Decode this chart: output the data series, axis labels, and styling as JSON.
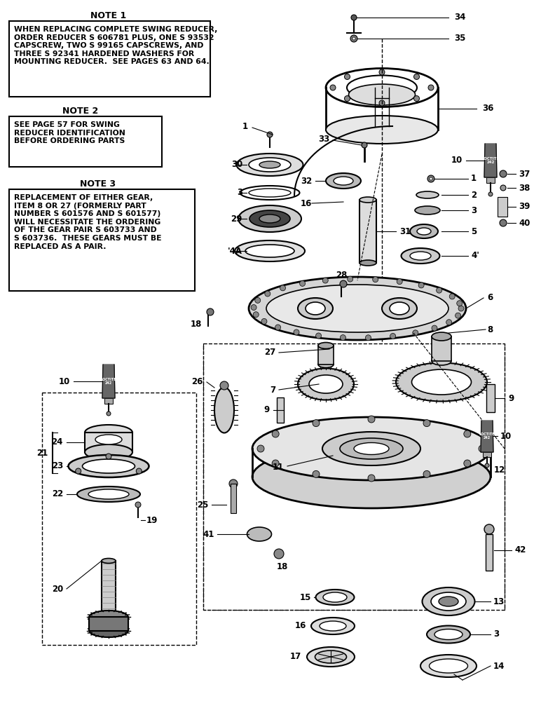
{
  "bg": "#ffffff",
  "note1_title": "NOTE 1",
  "note1_body": "WHEN REPLACING COMPLETE SWING REDUCER,\nORDER REDUCER S 606781 PLUS, ONE S 93532\nCAPSCREW, TWO S 99165 CAPSCREWS, AND\nTHREE S 92341 HARDENED WASHERS FOR\nMOUNTING REDUCER.  SEE PAGES 63 AND 64.",
  "note2_title": "NOTE 2",
  "note2_body": "SEE PAGE 57 FOR SWING\nREDUCER IDENTIFICATION\nBEFORE ORDERING PARTS",
  "note3_title": "NOTE 3",
  "note3_body": "REPLACEMENT OF EITHER GEAR,\nITEM 8 OR 27 (FORMERLY PART\nNUMBER S 601576 AND S 601577)\nWILL NECESSITATE THE ORDERING\nOF THE GEAR PAIR S 603733 AND\nS 603736.  THESE GEARS MUST BE\nREPLACED AS A PAIR."
}
